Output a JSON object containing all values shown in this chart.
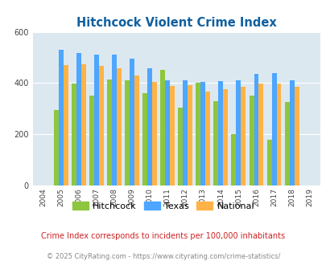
{
  "title": "Hitchcock Violent Crime Index",
  "years": [
    2004,
    2005,
    2006,
    2007,
    2008,
    2009,
    2010,
    2011,
    2012,
    2013,
    2014,
    2015,
    2016,
    2017,
    2018,
    2019
  ],
  "hitchcock": [
    null,
    295,
    397,
    352,
    413,
    412,
    360,
    452,
    305,
    402,
    328,
    200,
    350,
    180,
    325,
    null
  ],
  "texas": [
    null,
    530,
    518,
    512,
    512,
    495,
    458,
    410,
    410,
    403,
    406,
    412,
    437,
    440,
    410,
    null
  ],
  "national": [
    null,
    469,
    473,
    466,
    457,
    429,
    404,
    390,
    392,
    368,
    375,
    385,
    399,
    398,
    385,
    null
  ],
  "hitchcock_color": "#8dc63f",
  "texas_color": "#4da6ff",
  "national_color": "#ffb347",
  "bg_color": "#dce8f0",
  "ylim": [
    0,
    600
  ],
  "yticks": [
    0,
    200,
    400,
    600
  ],
  "subtitle": "Crime Index corresponds to incidents per 100,000 inhabitants",
  "footer": "© 2025 CityRating.com - https://www.cityrating.com/crime-statistics/",
  "title_color": "#1060a0",
  "subtitle_color": "#cc2222",
  "footer_color": "#888888"
}
